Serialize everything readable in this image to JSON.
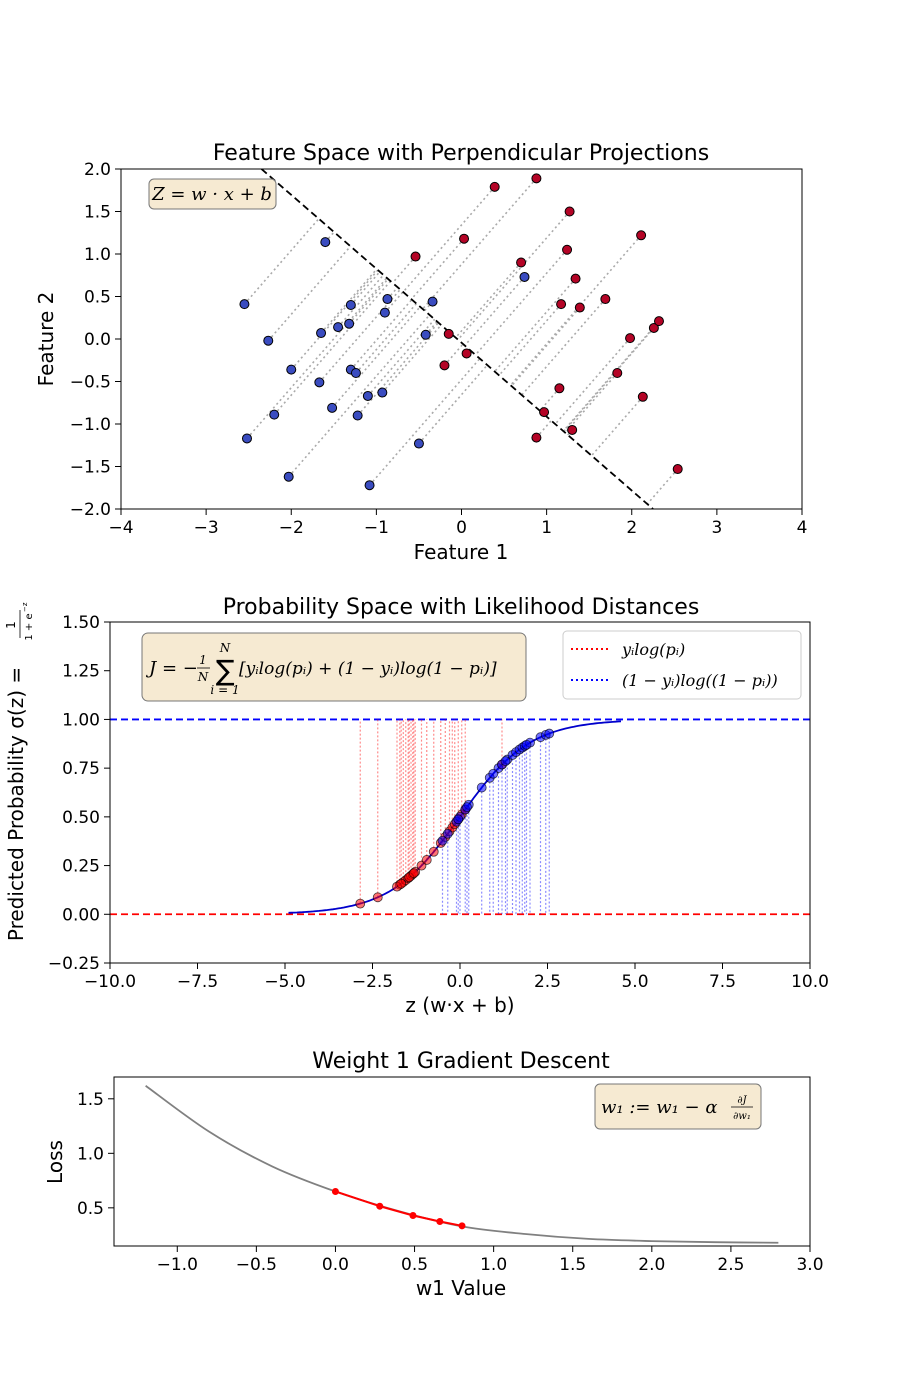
{
  "chart_data": [
    {
      "type": "scatter",
      "title": "Feature Space with Perpendicular Projections",
      "xlabel": "Feature 1",
      "ylabel": "Feature 2",
      "xlim": [
        -4,
        4
      ],
      "ylim": [
        -2.0,
        2.0
      ],
      "xticks": [
        "−4",
        "−3",
        "−2",
        "−1",
        "0",
        "1",
        "2",
        "3",
        "4"
      ],
      "yticks": [
        "2.0",
        "1.5",
        "1.0",
        "0.5",
        "0.0",
        "−0.5",
        "−1.0",
        "−1.5",
        "−2.0"
      ],
      "annotation": "Z = w · x + b",
      "decision_boundary": {
        "x": [
          -2.35,
          2.25
        ],
        "y": [
          2.0,
          -2.0
        ]
      },
      "series": [
        {
          "color": "#3a4cc0",
          "points": [
            [
              -2.55,
              0.41
            ],
            [
              -2.27,
              -0.02
            ],
            [
              -2.52,
              -1.17
            ],
            [
              -2.2,
              -0.89
            ],
            [
              -2.03,
              -1.62
            ],
            [
              -2.0,
              -0.36
            ],
            [
              -1.6,
              1.14
            ],
            [
              -1.65,
              0.07
            ],
            [
              -1.67,
              -0.51
            ],
            [
              -1.52,
              -0.81
            ],
            [
              -1.45,
              0.14
            ],
            [
              -1.32,
              0.18
            ],
            [
              -1.3,
              0.4
            ],
            [
              -1.3,
              -0.36
            ],
            [
              -1.24,
              -0.4
            ],
            [
              -1.22,
              -0.9
            ],
            [
              -1.1,
              -0.67
            ],
            [
              -1.08,
              -1.72
            ],
            [
              -0.93,
              -0.63
            ],
            [
              -0.9,
              0.31
            ],
            [
              -0.87,
              0.47
            ],
            [
              -0.5,
              -1.23
            ],
            [
              -0.42,
              0.05
            ],
            [
              -0.34,
              0.44
            ],
            [
              0.74,
              0.73
            ]
          ]
        },
        {
          "color": "#b40426",
          "points": [
            [
              -0.54,
              0.97
            ],
            [
              -0.2,
              -0.31
            ],
            [
              -0.15,
              0.06
            ],
            [
              0.03,
              1.18
            ],
            [
              0.06,
              -0.17
            ],
            [
              0.39,
              1.79
            ],
            [
              0.7,
              0.9
            ],
            [
              0.88,
              1.89
            ],
            [
              0.88,
              -1.16
            ],
            [
              0.97,
              -0.86
            ],
            [
              1.15,
              -0.58
            ],
            [
              1.17,
              0.41
            ],
            [
              1.24,
              1.05
            ],
            [
              1.27,
              1.5
            ],
            [
              1.3,
              -1.07
            ],
            [
              1.34,
              0.71
            ],
            [
              1.39,
              0.37
            ],
            [
              1.69,
              0.47
            ],
            [
              1.83,
              -0.4
            ],
            [
              1.98,
              0.01
            ],
            [
              2.11,
              1.22
            ],
            [
              2.13,
              -0.68
            ],
            [
              2.26,
              0.13
            ],
            [
              2.32,
              0.21
            ],
            [
              2.54,
              -1.53
            ]
          ]
        }
      ]
    },
    {
      "type": "scatter",
      "title": "Probability Space with Likelihood Distances",
      "xlabel": "z (w·x + b)",
      "ylabel": "Predicted Probability σ(z) = ",
      "ylabel_fraction": {
        "numerator": "1",
        "denominator": "1 + e"
      },
      "xlim": [
        -10,
        10
      ],
      "ylim": [
        -0.25,
        1.5
      ],
      "xticks": [
        "−10.0",
        "−7.5",
        "−5.0",
        "−2.5",
        "0.0",
        "2.5",
        "5.0",
        "7.5",
        "10.0"
      ],
      "yticks": [
        "1.50",
        "1.25",
        "1.00",
        "0.75",
        "0.50",
        "0.25",
        "0.00",
        "−0.25"
      ],
      "reference_lines": [
        {
          "y": 1.0,
          "color": "#0000ff"
        },
        {
          "y": 0.0,
          "color": "#ff0000"
        }
      ],
      "curve": {
        "function": "sigmoid",
        "x_range": [
          -4.9,
          4.6
        ],
        "color": "#0000cc"
      },
      "legend": {
        "position": "top-right",
        "entries": [
          {
            "label": "yᵢlog(pᵢ)",
            "color": "#ff0000"
          },
          {
            "label": "(1 − yᵢ)log((1 − pᵢ))",
            "color": "#0000ff"
          }
        ]
      },
      "annotation": {
        "label": "J = −",
        "fraction_num": "1",
        "fraction_den": "N",
        "sum_upper": "N",
        "sum_lower": "i = 1",
        "body": "[yᵢlog(pᵢ) + (1 − yᵢ)log(1 − pᵢ)]"
      },
      "series": [
        {
          "color": "#ff0000",
          "z": [
            -2.85,
            -2.35,
            -1.72,
            -1.62,
            -1.55,
            -1.48,
            -1.4,
            -1.35,
            -1.28,
            -1.1,
            -0.95,
            -0.75,
            -0.55,
            -0.42,
            -0.3,
            -0.22,
            -0.15,
            -0.05,
            0.05,
            0.15,
            -1.8,
            -1.68,
            -1.45,
            -1.32,
            1.2
          ]
        },
        {
          "color": "#0000ff",
          "z": [
            -0.5,
            -0.35,
            -0.1,
            0.0,
            0.15,
            0.25,
            0.62,
            0.85,
            1.1,
            1.2,
            1.35,
            1.5,
            1.6,
            1.7,
            1.78,
            1.85,
            2.0,
            2.3,
            2.45,
            2.55,
            -0.05,
            0.2,
            0.95,
            1.3,
            1.9
          ]
        }
      ]
    },
    {
      "type": "line",
      "title": "Weight 1 Gradient Descent",
      "xlabel": "w1 Value",
      "ylabel": "Loss",
      "xlim": [
        -1.4,
        3.0
      ],
      "ylim": [
        0.15,
        1.7
      ],
      "xticks": [
        "−1.0",
        "−0.5",
        "0.0",
        "0.5",
        "1.0",
        "1.5",
        "2.0",
        "2.5",
        "3.0"
      ],
      "yticks": [
        "1.5",
        "1.0",
        "0.5"
      ],
      "annotation": {
        "lhs": "w₁ := w₁ − α",
        "num": "∂J",
        "den": "∂w₁"
      },
      "loss_curve": {
        "color": "#808080",
        "x": [
          -1.2,
          -0.8,
          -0.4,
          0.0,
          0.4,
          0.8,
          1.2,
          1.6,
          2.0,
          2.4,
          2.8
        ],
        "y": [
          1.62,
          1.2,
          0.88,
          0.65,
          0.47,
          0.33,
          0.26,
          0.215,
          0.195,
          0.185,
          0.18
        ]
      },
      "descent_steps": {
        "color": "#ff0000",
        "x": [
          0.0,
          0.28,
          0.49,
          0.66,
          0.8
        ],
        "y": [
          0.65,
          0.515,
          0.43,
          0.375,
          0.335
        ]
      }
    }
  ]
}
